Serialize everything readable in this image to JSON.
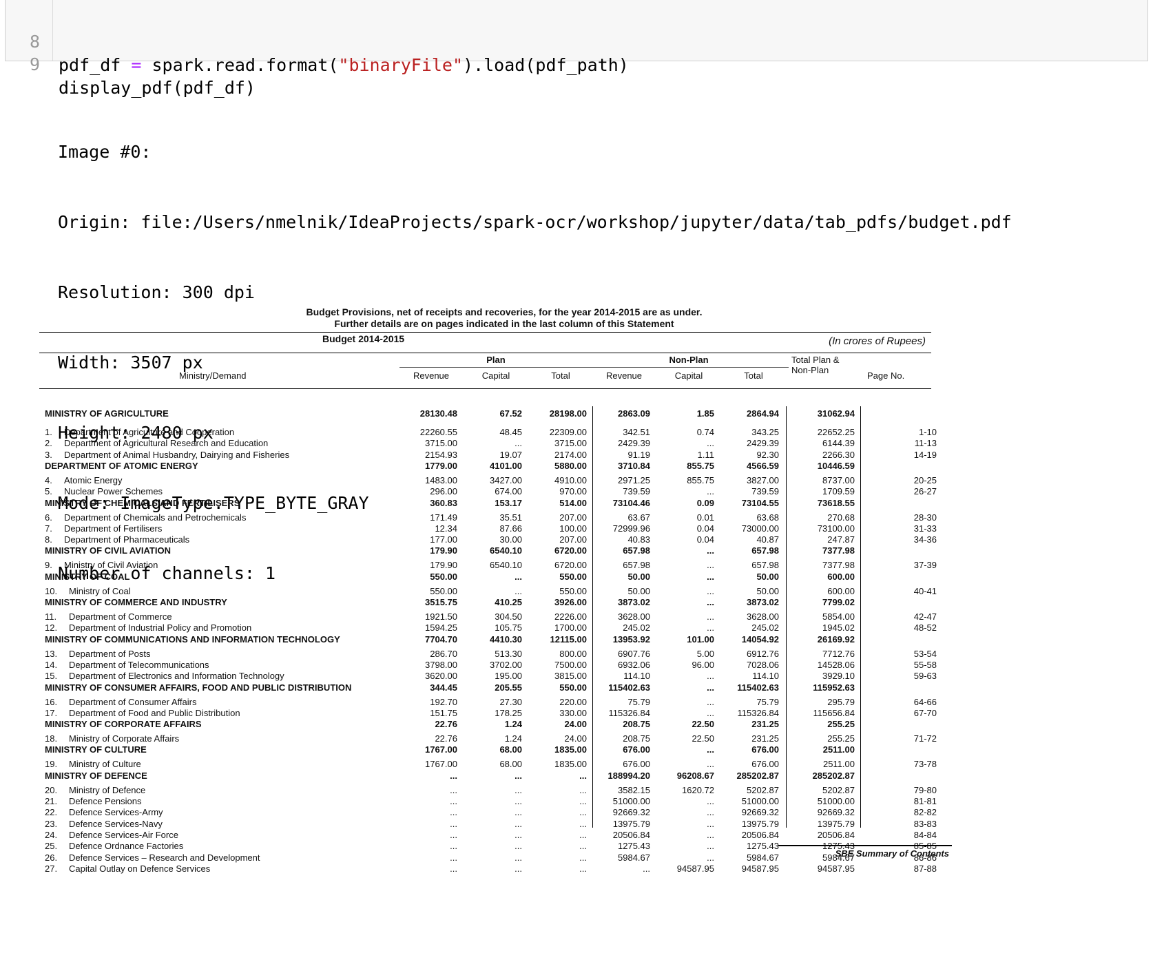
{
  "code_cell": {
    "lines": [
      {
        "num": "8",
        "pre": "pdf_df ",
        "op": "=",
        "mid": " spark.read.format(",
        "str": "\"binaryFile\"",
        "post": ").load(pdf_path)"
      },
      {
        "num": "9",
        "pre": "display_pdf(pdf_df)",
        "op": "",
        "mid": "",
        "str": "",
        "post": ""
      }
    ]
  },
  "output": {
    "lines": [
      "Image #0:",
      "Origin: file:/Users/nmelnik/IdeaProjects/spark-ocr/workshop/jupyter/data/tab_pdfs/budget.pdf",
      "Resolution: 300 dpi",
      "Width: 3507 px",
      "Height: 2480 px",
      "Mode: ImageType.TYPE_BYTE_GRAY",
      "Number of channels: 1"
    ]
  },
  "document": {
    "title1": "Budget Provisions, net of receipts and recoveries, for the year 2014-2015 are as under.",
    "title2": "Further details are on pages indicated in the last column of this Statement",
    "subtitle": "Budget 2014-2015",
    "units": "(In crores of Rupees)",
    "headers": {
      "plan": "Plan",
      "non_plan": "Non-Plan",
      "total_plan_1": "Total Plan &",
      "total_plan_2": "Non-Plan",
      "ministry": "Ministry/Demand",
      "revenue1": "Revenue",
      "capital1": "Capital",
      "total1": "Total",
      "revenue2": "Revenue",
      "capital2": "Capital",
      "total2": "Total",
      "page_no": "Page No."
    },
    "rows": [
      {
        "no": "",
        "label": "MINISTRY OF AGRICULTURE",
        "v": [
          "28130.48",
          "67.52",
          "28198.00",
          "2863.09",
          "1.85",
          "2864.94",
          "31062.94"
        ],
        "page": "",
        "bold": true
      },
      {
        "no": "1.",
        "label": "Department of Agriculture and Cooperation",
        "v": [
          "22260.55",
          "48.45",
          "22309.00",
          "342.51",
          "0.74",
          "343.25",
          "22652.25"
        ],
        "page": "1-10",
        "bold": false
      },
      {
        "no": "2.",
        "label": "Department of Agricultural Research and Education",
        "v": [
          "3715.00",
          "...",
          "3715.00",
          "2429.39",
          "...",
          "2429.39",
          "6144.39"
        ],
        "page": "11-13",
        "bold": false
      },
      {
        "no": "3.",
        "label": "Department of Animal Husbandry, Dairying and Fisheries",
        "v": [
          "2154.93",
          "19.07",
          "2174.00",
          "91.19",
          "1.11",
          "92.30",
          "2266.30"
        ],
        "page": "14-19",
        "bold": false
      },
      {
        "no": "",
        "label": "DEPARTMENT OF ATOMIC ENERGY",
        "v": [
          "1779.00",
          "4101.00",
          "5880.00",
          "3710.84",
          "855.75",
          "4566.59",
          "10446.59"
        ],
        "page": "",
        "bold": true
      },
      {
        "no": "4.",
        "label": "Atomic Energy",
        "v": [
          "1483.00",
          "3427.00",
          "4910.00",
          "2971.25",
          "855.75",
          "3827.00",
          "8737.00"
        ],
        "page": "20-25",
        "bold": false
      },
      {
        "no": "5.",
        "label": "Nuclear Power Schemes",
        "v": [
          "296.00",
          "674.00",
          "970.00",
          "739.59",
          "...",
          "739.59",
          "1709.59"
        ],
        "page": "26-27",
        "bold": false
      },
      {
        "no": "",
        "label": "MINISTRY OF CHEMICALS AND FERTILISERS",
        "v": [
          "360.83",
          "153.17",
          "514.00",
          "73104.46",
          "0.09",
          "73104.55",
          "73618.55"
        ],
        "page": "",
        "bold": true
      },
      {
        "no": "6.",
        "label": "Department of Chemicals and Petrochemicals",
        "v": [
          "171.49",
          "35.51",
          "207.00",
          "63.67",
          "0.01",
          "63.68",
          "270.68"
        ],
        "page": "28-30",
        "bold": false
      },
      {
        "no": "7.",
        "label": "Department of Fertilisers",
        "v": [
          "12.34",
          "87.66",
          "100.00",
          "72999.96",
          "0.04",
          "73000.00",
          "73100.00"
        ],
        "page": "31-33",
        "bold": false
      },
      {
        "no": "8.",
        "label": "Department of Pharmaceuticals",
        "v": [
          "177.00",
          "30.00",
          "207.00",
          "40.83",
          "0.04",
          "40.87",
          "247.87"
        ],
        "page": "34-36",
        "bold": false
      },
      {
        "no": "",
        "label": "MINISTRY OF CIVIL AVIATION",
        "v": [
          "179.90",
          "6540.10",
          "6720.00",
          "657.98",
          "...",
          "657.98",
          "7377.98"
        ],
        "page": "",
        "bold": true
      },
      {
        "no": "9.",
        "label": "Ministry of Civil Aviation",
        "v": [
          "179.90",
          "6540.10",
          "6720.00",
          "657.98",
          "...",
          "657.98",
          "7377.98"
        ],
        "page": "37-39",
        "bold": false
      },
      {
        "no": "",
        "label": "MINISTRY OF COAL",
        "v": [
          "550.00",
          "...",
          "550.00",
          "50.00",
          "...",
          "50.00",
          "600.00"
        ],
        "page": "",
        "bold": true
      },
      {
        "no": "10.",
        "label": "Ministry of Coal",
        "v": [
          "550.00",
          "...",
          "550.00",
          "50.00",
          "...",
          "50.00",
          "600.00"
        ],
        "page": "40-41",
        "bold": false
      },
      {
        "no": "",
        "label": "MINISTRY OF COMMERCE AND INDUSTRY",
        "v": [
          "3515.75",
          "410.25",
          "3926.00",
          "3873.02",
          "...",
          "3873.02",
          "7799.02"
        ],
        "page": "",
        "bold": true
      },
      {
        "no": "11.",
        "label": "Department of Commerce",
        "v": [
          "1921.50",
          "304.50",
          "2226.00",
          "3628.00",
          "...",
          "3628.00",
          "5854.00"
        ],
        "page": "42-47",
        "bold": false
      },
      {
        "no": "12.",
        "label": "Department of Industrial Policy and Promotion",
        "v": [
          "1594.25",
          "105.75",
          "1700.00",
          "245.02",
          "...",
          "245.02",
          "1945.02"
        ],
        "page": "48-52",
        "bold": false
      },
      {
        "no": "",
        "label": "MINISTRY OF COMMUNICATIONS AND INFORMATION TECHNOLOGY",
        "v": [
          "7704.70",
          "4410.30",
          "12115.00",
          "13953.92",
          "101.00",
          "14054.92",
          "26169.92"
        ],
        "page": "",
        "bold": true
      },
      {
        "no": "13.",
        "label": "Department of Posts",
        "v": [
          "286.70",
          "513.30",
          "800.00",
          "6907.76",
          "5.00",
          "6912.76",
          "7712.76"
        ],
        "page": "53-54",
        "bold": false
      },
      {
        "no": "14.",
        "label": "Department of Telecommunications",
        "v": [
          "3798.00",
          "3702.00",
          "7500.00",
          "6932.06",
          "96.00",
          "7028.06",
          "14528.06"
        ],
        "page": "55-58",
        "bold": false
      },
      {
        "no": "15.",
        "label": "Department of Electronics and Information Technology",
        "v": [
          "3620.00",
          "195.00",
          "3815.00",
          "114.10",
          "...",
          "114.10",
          "3929.10"
        ],
        "page": "59-63",
        "bold": false
      },
      {
        "no": "",
        "label": "MINISTRY OF CONSUMER AFFAIRS, FOOD AND PUBLIC DISTRIBUTION",
        "v": [
          "344.45",
          "205.55",
          "550.00",
          "115402.63",
          "...",
          "115402.63",
          "115952.63"
        ],
        "page": "",
        "bold": true
      },
      {
        "no": "16.",
        "label": "Department of Consumer Affairs",
        "v": [
          "192.70",
          "27.30",
          "220.00",
          "75.79",
          "...",
          "75.79",
          "295.79"
        ],
        "page": "64-66",
        "bold": false
      },
      {
        "no": "17.",
        "label": "Department of Food and Public Distribution",
        "v": [
          "151.75",
          "178.25",
          "330.00",
          "115326.84",
          "...",
          "115326.84",
          "115656.84"
        ],
        "page": "67-70",
        "bold": false
      },
      {
        "no": "",
        "label": "MINISTRY OF CORPORATE AFFAIRS",
        "v": [
          "22.76",
          "1.24",
          "24.00",
          "208.75",
          "22.50",
          "231.25",
          "255.25"
        ],
        "page": "",
        "bold": true
      },
      {
        "no": "18.",
        "label": "Ministry of Corporate Affairs",
        "v": [
          "22.76",
          "1.24",
          "24.00",
          "208.75",
          "22.50",
          "231.25",
          "255.25"
        ],
        "page": "71-72",
        "bold": false
      },
      {
        "no": "",
        "label": "MINISTRY OF CULTURE",
        "v": [
          "1767.00",
          "68.00",
          "1835.00",
          "676.00",
          "...",
          "676.00",
          "2511.00"
        ],
        "page": "",
        "bold": true
      },
      {
        "no": "19.",
        "label": "Ministry of Culture",
        "v": [
          "1767.00",
          "68.00",
          "1835.00",
          "676.00",
          "...",
          "676.00",
          "2511.00"
        ],
        "page": "73-78",
        "bold": false
      },
      {
        "no": "",
        "label": "MINISTRY OF DEFENCE",
        "v": [
          "...",
          "...",
          "...",
          "188994.20",
          "96208.67",
          "285202.87",
          "285202.87"
        ],
        "page": "",
        "bold": true
      },
      {
        "no": "20.",
        "label": "Ministry of Defence",
        "v": [
          "...",
          "...",
          "...",
          "3582.15",
          "1620.72",
          "5202.87",
          "5202.87"
        ],
        "page": "79-80",
        "bold": false
      },
      {
        "no": "21.",
        "label": "Defence Pensions",
        "v": [
          "...",
          "...",
          "...",
          "51000.00",
          "...",
          "51000.00",
          "51000.00"
        ],
        "page": "81-81",
        "bold": false
      },
      {
        "no": "22.",
        "label": "Defence Services-Army",
        "v": [
          "...",
          "...",
          "...",
          "92669.32",
          "...",
          "92669.32",
          "92669.32"
        ],
        "page": "82-82",
        "bold": false
      },
      {
        "no": "23.",
        "label": "Defence Services-Navy",
        "v": [
          "...",
          "...",
          "...",
          "13975.79",
          "...",
          "13975.79",
          "13975.79"
        ],
        "page": "83-83",
        "bold": false
      },
      {
        "no": "24.",
        "label": "Defence Services-Air Force",
        "v": [
          "...",
          "...",
          "...",
          "20506.84",
          "...",
          "20506.84",
          "20506.84"
        ],
        "page": "84-84",
        "bold": false
      },
      {
        "no": "25.",
        "label": "Defence Ordnance Factories",
        "v": [
          "...",
          "...",
          "...",
          "1275.43",
          "...",
          "1275.43",
          "1275.43"
        ],
        "page": "85-85",
        "bold": false
      },
      {
        "no": "26.",
        "label": "Defence Services – Research and Development",
        "v": [
          "...",
          "...",
          "...",
          "5984.67",
          "...",
          "5984.67",
          "5984.67"
        ],
        "page": "86-86",
        "bold": false
      },
      {
        "no": "27.",
        "label": "Capital Outlay on Defence Services",
        "v": [
          "...",
          "...",
          "...",
          "...",
          "94587.95",
          "94587.95",
          "94587.95"
        ],
        "page": "87-88",
        "bold": false
      }
    ],
    "footer": "SBE Summary of Contents"
  }
}
